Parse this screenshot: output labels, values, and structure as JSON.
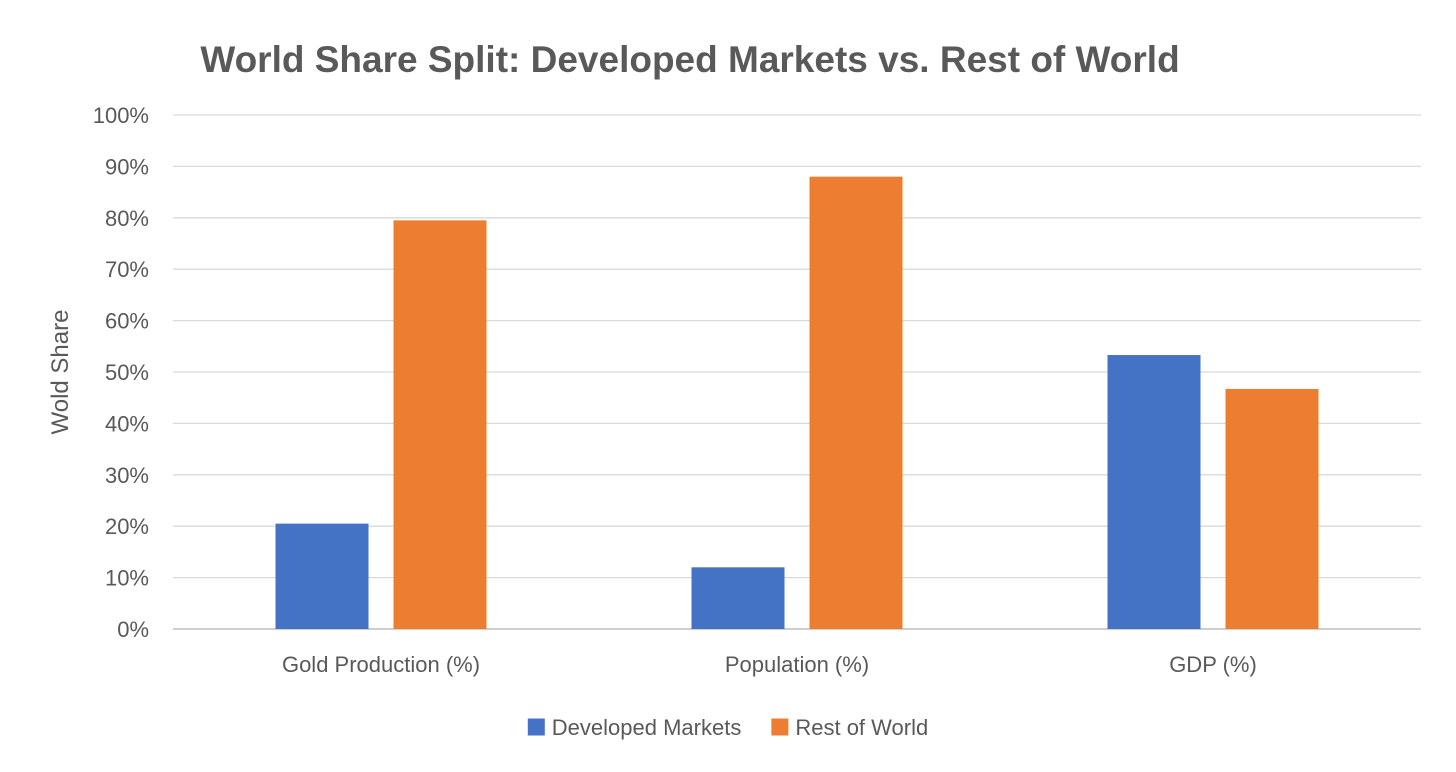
{
  "chart_data": {
    "type": "bar",
    "title": "World Share Split: Developed Markets vs. Rest of World",
    "xlabel": "",
    "ylabel": "Wold Share",
    "categories": [
      "Gold Production (%)",
      "Population (%)",
      "GDP (%)"
    ],
    "series": [
      {
        "name": "Developed Markets",
        "color": "#4472c4",
        "values": [
          20.5,
          12,
          53.3
        ]
      },
      {
        "name": "Rest of World",
        "color": "#ed7d31",
        "values": [
          79.5,
          88,
          46.7
        ]
      }
    ],
    "ylim": [
      0,
      100
    ],
    "yticks": [
      0,
      10,
      20,
      30,
      40,
      50,
      60,
      70,
      80,
      90,
      100
    ],
    "ytick_labels": [
      "0%",
      "10%",
      "20%",
      "30%",
      "40%",
      "50%",
      "60%",
      "70%",
      "80%",
      "90%",
      "100%"
    ],
    "grid": true,
    "legend_position": "bottom"
  }
}
